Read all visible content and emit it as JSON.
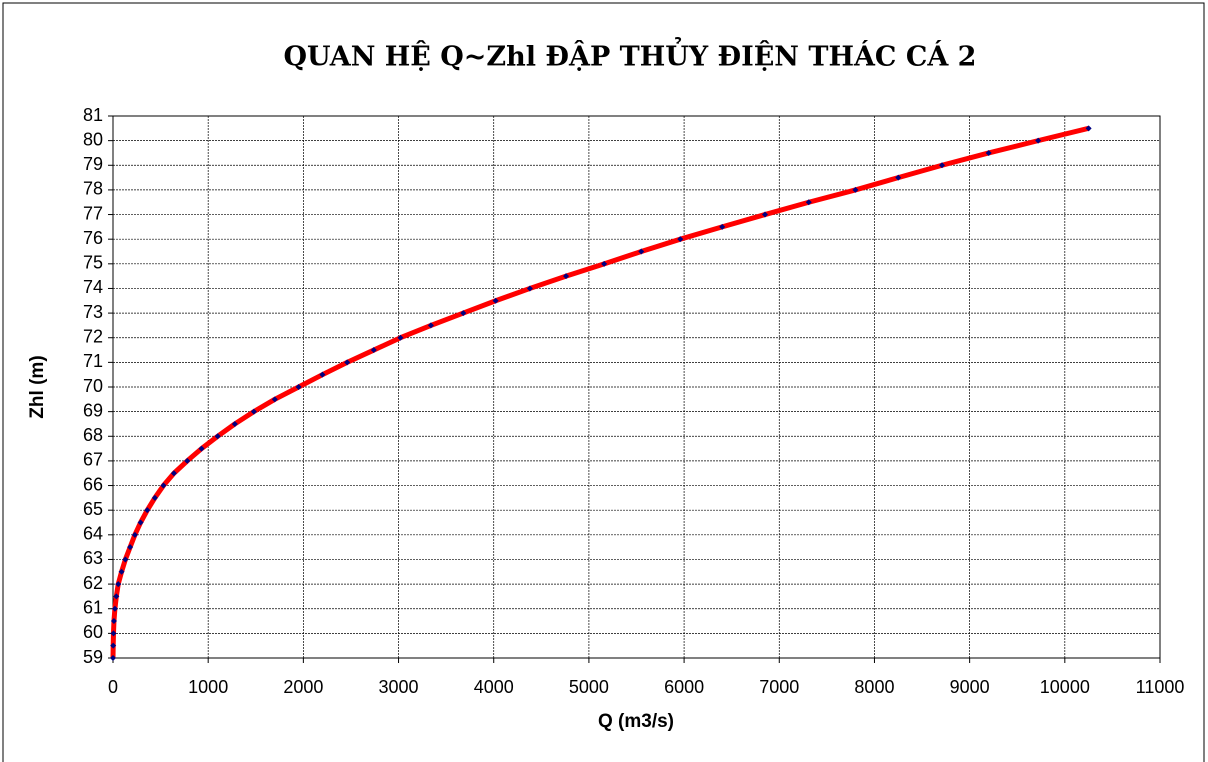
{
  "chart_data": {
    "type": "line",
    "title": "QUAN HỆ Q~Zhl ĐẬP THỦY ĐIỆN THÁC CÁ 2",
    "x_label": "Q (m3/s)",
    "y_label": "Zhl (m)",
    "x": [
      0,
      2,
      5,
      10,
      20,
      35,
      55,
      90,
      130,
      180,
      230,
      290,
      360,
      440,
      530,
      640,
      780,
      930,
      1100,
      1280,
      1480,
      1700,
      1950,
      2200,
      2460,
      2740,
      3020,
      3340,
      3680,
      4020,
      4380,
      4760,
      5160,
      5550,
      5960,
      6400,
      6850,
      7310,
      7800,
      8250,
      8710,
      9200,
      9720,
      10250
    ],
    "series": [
      {
        "color": "#ff0000",
        "marker_color": "#000080",
        "values": [
          59,
          59.5,
          60,
          60.5,
          61,
          61.5,
          62,
          62.5,
          63,
          63.5,
          64,
          64.5,
          65,
          65.5,
          66,
          66.5,
          67,
          67.5,
          68,
          68.5,
          69,
          69.5,
          70,
          70.5,
          71,
          71.5,
          72,
          72.5,
          73,
          73.5,
          74,
          74.5,
          75,
          75.5,
          76,
          76.5,
          77,
          77.5,
          78,
          78.5,
          79,
          79.5,
          80,
          80.5
        ]
      }
    ],
    "xlim": [
      0,
      11000
    ],
    "xticks": [
      0,
      1000,
      2000,
      3000,
      4000,
      5000,
      6000,
      7000,
      8000,
      9000,
      10000,
      11000
    ],
    "ylim": [
      59,
      81
    ],
    "yticks": [
      59,
      60,
      61,
      62,
      63,
      64,
      65,
      66,
      67,
      68,
      69,
      70,
      71,
      72,
      73,
      74,
      75,
      76,
      77,
      78,
      79,
      80,
      81
    ],
    "grid": true
  }
}
